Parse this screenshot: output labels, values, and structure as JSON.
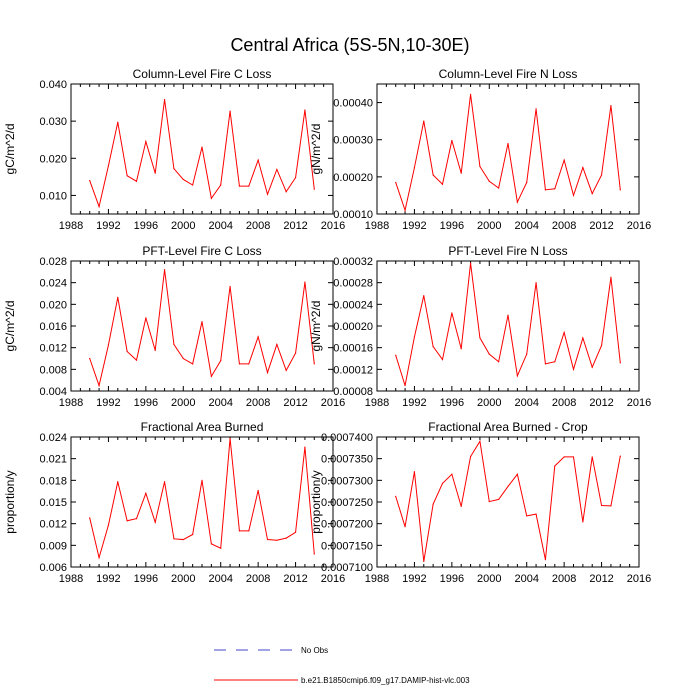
{
  "figure": {
    "title": "Central Africa (5S-5N,10-30E)",
    "legend": [
      {
        "label": "No Obs",
        "color": "#4444cc",
        "dashed": true
      },
      {
        "label": "b.e21.B1850cmip6.f09_g17.DAMIP-hist-vlc.003",
        "color": "#ff0000",
        "dashed": false
      }
    ]
  },
  "chart_data": [
    {
      "type": "line",
      "title": "Column-Level Fire C Loss",
      "ylabel": "gC/m^2/d",
      "xlim": [
        1988,
        2016
      ],
      "ylim": [
        0.005,
        0.04
      ],
      "xticks": [
        "1988",
        "1992",
        "1996",
        "2000",
        "2004",
        "2008",
        "2012",
        "2016"
      ],
      "yticks": [
        "0.010",
        "0.020",
        "0.030",
        "0.040"
      ],
      "ytick_values": [
        0.01,
        0.02,
        0.03,
        0.04
      ],
      "series": [
        {
          "color": "#ff0000",
          "x": [
            1990,
            1991,
            1992,
            1993,
            1994,
            1995,
            1996,
            1997,
            1998,
            1999,
            2000,
            2001,
            2002,
            2003,
            2004,
            2005,
            2006,
            2007,
            2008,
            2009,
            2010,
            2011,
            2012,
            2013,
            2014
          ],
          "values": [
            0.014,
            0.007,
            0.018,
            0.0297,
            0.0153,
            0.0138,
            0.0245,
            0.016,
            0.0358,
            0.0172,
            0.0143,
            0.0128,
            0.023,
            0.0092,
            0.0128,
            0.0327,
            0.0125,
            0.0125,
            0.0195,
            0.0103,
            0.017,
            0.011,
            0.0148,
            0.033,
            0.0117
          ]
        }
      ]
    },
    {
      "type": "line",
      "title": "Column-Level Fire N Loss",
      "ylabel": "gN/m^2/d",
      "xlim": [
        1988,
        2016
      ],
      "ylim": [
        0.0001,
        0.00045
      ],
      "xticks": [
        "1988",
        "1992",
        "1996",
        "2000",
        "2004",
        "2008",
        "2012",
        "2016"
      ],
      "yticks": [
        "0.00010",
        "0.00020",
        "0.00030",
        "0.00040"
      ],
      "ytick_values": [
        0.0001,
        0.0002,
        0.0003,
        0.0004
      ],
      "series": [
        {
          "color": "#ff0000",
          "x": [
            1990,
            1991,
            1992,
            1993,
            1994,
            1995,
            1996,
            1997,
            1998,
            1999,
            2000,
            2001,
            2002,
            2003,
            2004,
            2005,
            2006,
            2007,
            2008,
            2009,
            2010,
            2011,
            2012,
            2013,
            2014
          ],
          "values": [
            0.000185,
            0.00011,
            0.000225,
            0.00035,
            0.000205,
            0.00018,
            0.000298,
            0.00021,
            0.000422,
            0.000228,
            0.000188,
            0.00017,
            0.00029,
            0.000132,
            0.000185,
            0.000383,
            0.000165,
            0.000168,
            0.000245,
            0.00015,
            0.000225,
            0.000155,
            0.000205,
            0.000392,
            0.000165
          ]
        }
      ]
    },
    {
      "type": "line",
      "title": "PFT-Level Fire C Loss",
      "ylabel": "gC/m^2/d",
      "xlim": [
        1988,
        2016
      ],
      "ylim": [
        0.004,
        0.028
      ],
      "xticks": [
        "1988",
        "1992",
        "1996",
        "2000",
        "2004",
        "2008",
        "2012",
        "2016"
      ],
      "yticks": [
        "0.004",
        "0.008",
        "0.012",
        "0.016",
        "0.020",
        "0.024",
        "0.028"
      ],
      "ytick_values": [
        0.004,
        0.008,
        0.012,
        0.016,
        0.02,
        0.024,
        0.028
      ],
      "series": [
        {
          "color": "#ff0000",
          "x": [
            1990,
            1991,
            1992,
            1993,
            1994,
            1995,
            1996,
            1997,
            1998,
            1999,
            2000,
            2001,
            2002,
            2003,
            2004,
            2005,
            2006,
            2007,
            2008,
            2009,
            2010,
            2011,
            2012,
            2013,
            2014
          ],
          "values": [
            0.01,
            0.005,
            0.0125,
            0.0213,
            0.0113,
            0.0097,
            0.0175,
            0.0115,
            0.0264,
            0.0126,
            0.01,
            0.009,
            0.0168,
            0.0067,
            0.0096,
            0.0233,
            0.009,
            0.009,
            0.014,
            0.0074,
            0.0126,
            0.0078,
            0.011,
            0.0241,
            0.009
          ]
        }
      ]
    },
    {
      "type": "line",
      "title": "PFT-Level Fire N Loss",
      "ylabel": "gN/m^2/d",
      "xlim": [
        1988,
        2016
      ],
      "ylim": [
        8e-05,
        0.00032
      ],
      "xticks": [
        "1988",
        "1992",
        "1996",
        "2000",
        "2004",
        "2008",
        "2012",
        "2016"
      ],
      "yticks": [
        "0.00008",
        "0.00012",
        "0.00016",
        "0.00020",
        "0.00024",
        "0.00028",
        "0.00032"
      ],
      "ytick_values": [
        8e-05,
        0.00012,
        0.00016,
        0.0002,
        0.00024,
        0.00028,
        0.00032
      ],
      "series": [
        {
          "color": "#ff0000",
          "x": [
            1990,
            1991,
            1992,
            1993,
            1994,
            1995,
            1996,
            1997,
            1998,
            1999,
            2000,
            2001,
            2002,
            2003,
            2004,
            2005,
            2006,
            2007,
            2008,
            2009,
            2010,
            2011,
            2012,
            2013,
            2014
          ],
          "values": [
            0.000146,
            9e-05,
            0.00018,
            0.000256,
            0.000162,
            0.000138,
            0.000224,
            0.000158,
            0.000316,
            0.000178,
            0.000148,
            0.000134,
            0.00022,
            0.000108,
            0.000148,
            0.00028,
            0.00013,
            0.000134,
            0.000188,
            0.00012,
            0.000178,
            0.000124,
            0.000164,
            0.00029,
            0.000132
          ]
        }
      ]
    },
    {
      "type": "line",
      "title": "Fractional Area Burned",
      "ylabel": "proportion/y",
      "xlim": [
        1988,
        2016
      ],
      "ylim": [
        0.006,
        0.024
      ],
      "xticks": [
        "1988",
        "1992",
        "1996",
        "2000",
        "2004",
        "2008",
        "2012",
        "2016"
      ],
      "yticks": [
        "0.006",
        "0.009",
        "0.012",
        "0.015",
        "0.018",
        "0.021",
        "0.024"
      ],
      "ytick_values": [
        0.006,
        0.009,
        0.012,
        0.015,
        0.018,
        0.021,
        0.024
      ],
      "series": [
        {
          "color": "#ff0000",
          "x": [
            1990,
            1991,
            1992,
            1993,
            1994,
            1995,
            1996,
            1997,
            1998,
            1999,
            2000,
            2001,
            2002,
            2003,
            2004,
            2005,
            2006,
            2007,
            2008,
            2009,
            2010,
            2011,
            2012,
            2013,
            2014
          ],
          "values": [
            0.0128,
            0.0073,
            0.0118,
            0.0178,
            0.0124,
            0.0127,
            0.0162,
            0.0122,
            0.0178,
            0.0099,
            0.0098,
            0.0105,
            0.018,
            0.0092,
            0.0086,
            0.0238,
            0.011,
            0.011,
            0.0166,
            0.0098,
            0.0097,
            0.01,
            0.0108,
            0.0226,
            0.0078
          ]
        }
      ]
    },
    {
      "type": "line",
      "title": "Fractional Area Burned - Crop",
      "ylabel": "proportion/y",
      "xlim": [
        1988,
        2016
      ],
      "ylim": [
        0.00071,
        0.00074
      ],
      "xticks": [
        "1988",
        "1992",
        "1996",
        "2000",
        "2004",
        "2008",
        "2012",
        "2016"
      ],
      "yticks": [
        "0.0007100",
        "0.0007150",
        "0.0007200",
        "0.0007250",
        "0.0007300",
        "0.0007350",
        "0.0007400"
      ],
      "ytick_values": [
        0.00071,
        0.000715,
        0.00072,
        0.000725,
        0.00073,
        0.000735,
        0.00074
      ],
      "series": [
        {
          "color": "#ff0000",
          "x": [
            1990,
            1991,
            1992,
            1993,
            1994,
            1995,
            1996,
            1997,
            1998,
            1999,
            2000,
            2001,
            2002,
            2003,
            2004,
            2005,
            2006,
            2007,
            2008,
            2009,
            2010,
            2011,
            2012,
            2013,
            2014
          ],
          "values": [
            0.0007263,
            0.0007193,
            0.000732,
            0.0007113,
            0.0007245,
            0.0007293,
            0.0007314,
            0.000724,
            0.0007355,
            0.000739,
            0.0007251,
            0.0007256,
            0.0007286,
            0.0007314,
            0.0007218,
            0.0007222,
            0.0007117,
            0.0007333,
            0.0007354,
            0.0007354,
            0.0007204,
            0.0007354,
            0.0007242,
            0.0007241,
            0.0007356
          ]
        }
      ]
    }
  ]
}
